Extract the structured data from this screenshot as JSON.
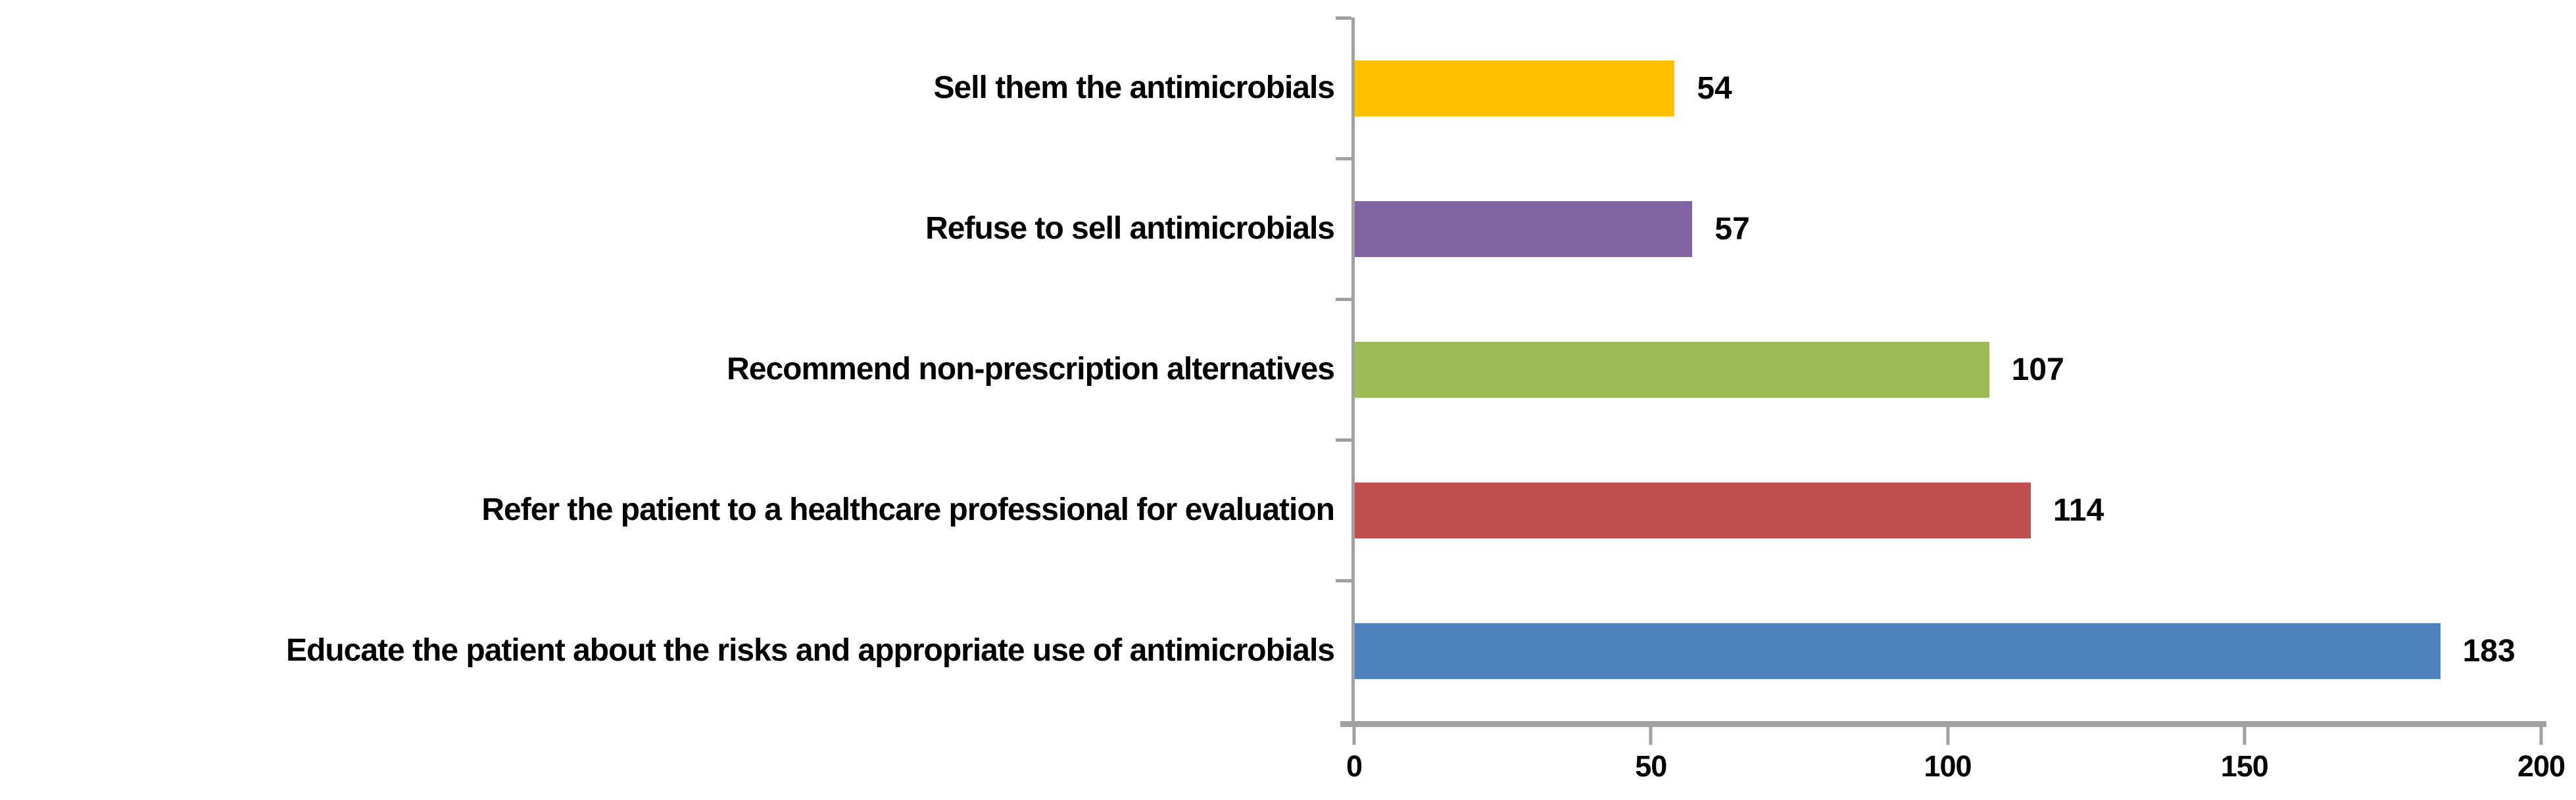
{
  "chart_data": {
    "type": "bar",
    "orientation": "horizontal",
    "title": "",
    "xlabel": "",
    "ylabel": "",
    "grid": "off",
    "legend": "none",
    "categories": [
      "Sell them the antimicrobials",
      "Refuse to sell antimicrobials",
      "Recommend non-prescription alternatives",
      "Refer the patient to a healthcare professional for evaluation",
      "Educate the patient about the risks and appropriate use of antimicrobials"
    ],
    "values": [
      54,
      57,
      107,
      114,
      183
    ],
    "colors": [
      "#FFC000",
      "#8064A2",
      "#9BBB59",
      "#C0504D",
      "#4F81BD"
    ],
    "value_labels_shown": true,
    "x_ticks": [
      0,
      50,
      100,
      150,
      200
    ],
    "xlim": [
      0,
      200
    ],
    "axis_color": "#A0A0A0",
    "text_color": "#000000",
    "background_color": "#FFFFFF"
  }
}
